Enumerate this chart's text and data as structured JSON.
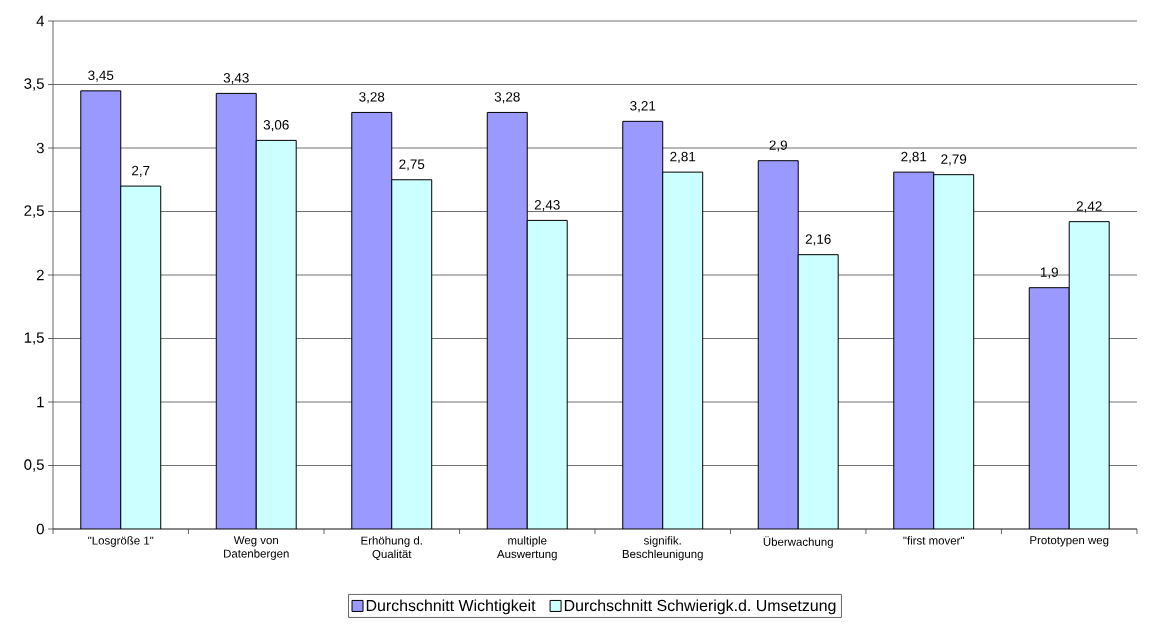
{
  "chart_data": {
    "type": "bar",
    "categories": [
      "\"Losgröße 1\"",
      "Weg von Datenbergen",
      "Erhöhung d. Qualität",
      "multiple Auswertung",
      "signifik. Beschleunigung",
      "Überwachung",
      "\"first mover\"",
      "Prototypen weg"
    ],
    "series": [
      {
        "name": "Durchschnitt Wichtigkeit",
        "color": "#9999ff",
        "values": [
          3.45,
          3.43,
          3.28,
          3.28,
          3.21,
          2.9,
          2.81,
          1.9
        ],
        "value_labels": [
          "3,45",
          "3,43",
          "3,28",
          "3,28",
          "3,21",
          "2,9",
          "2,81",
          "1,9"
        ]
      },
      {
        "name": "Durchschnitt Schwierigk.d. Umsetzung",
        "color": "#ccffff",
        "values": [
          2.7,
          3.06,
          2.75,
          2.43,
          2.81,
          2.16,
          2.79,
          2.42
        ],
        "value_labels": [
          "2,7",
          "3,06",
          "2,75",
          "2,43",
          "2,81",
          "2,16",
          "2,79",
          "2,42"
        ]
      }
    ],
    "ylim": [
      0,
      4
    ],
    "yticks": [
      0,
      {
        "value": 0.5,
        "label": "0,5"
      },
      1,
      {
        "value": 1.5,
        "label": "1,5"
      },
      2,
      {
        "value": 2.5,
        "label": "2,5"
      },
      3,
      {
        "value": 3.5,
        "label": "3,5"
      },
      4
    ],
    "grid": "y",
    "legend": "bottom"
  }
}
